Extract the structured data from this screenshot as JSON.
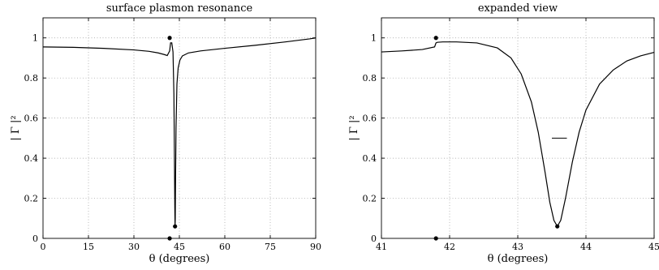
{
  "chart_data": [
    {
      "type": "line",
      "title": "surface plasmon resonance",
      "xlabel": "θ  (degrees)",
      "ylabel": "| Γ |²",
      "xlim": [
        0,
        90
      ],
      "ylim": [
        0,
        1.1
      ],
      "xticks": [
        0,
        15,
        30,
        45,
        60,
        75,
        90
      ],
      "yticks": [
        0,
        0.2,
        0.4,
        0.6,
        0.8,
        1
      ],
      "grid": true,
      "series": [
        {
          "x": [
            0,
            10,
            20,
            30,
            35,
            38,
            40,
            41,
            41.8,
            42.1,
            42.5,
            42.9,
            43.2,
            43.4,
            43.5,
            43.58,
            43.65,
            43.75,
            43.9,
            44.2,
            44.6,
            45.2,
            46,
            48,
            52,
            60,
            70,
            80,
            88,
            90
          ],
          "y": [
            0.955,
            0.953,
            0.948,
            0.94,
            0.933,
            0.925,
            0.917,
            0.912,
            0.935,
            0.975,
            0.975,
            0.93,
            0.72,
            0.35,
            0.15,
            0.06,
            0.1,
            0.3,
            0.55,
            0.77,
            0.85,
            0.89,
            0.91,
            0.925,
            0.935,
            0.948,
            0.963,
            0.98,
            0.995,
            1.0
          ]
        }
      ],
      "markers": [
        {
          "x": 41.8,
          "y": 1.0
        },
        {
          "x": 43.58,
          "y": 0.06
        },
        {
          "x": 41.8,
          "y": 0
        }
      ]
    },
    {
      "type": "line",
      "title": "expanded view",
      "xlabel": "θ  (degrees)",
      "ylabel": "| Γ |²",
      "xlim": [
        41,
        45
      ],
      "ylim": [
        0,
        1.1
      ],
      "xticks": [
        41,
        42,
        43,
        44,
        45
      ],
      "yticks": [
        0,
        0.2,
        0.4,
        0.6,
        0.8,
        1
      ],
      "grid": true,
      "series": [
        {
          "x": [
            41,
            41.3,
            41.6,
            41.78,
            41.8,
            41.82,
            41.9,
            42.1,
            42.4,
            42.7,
            42.9,
            43.05,
            43.2,
            43.3,
            43.4,
            43.47,
            43.53,
            43.58,
            43.63,
            43.7,
            43.8,
            43.9,
            44.0,
            44.2,
            44.4,
            44.6,
            44.8,
            45
          ],
          "y": [
            0.93,
            0.935,
            0.942,
            0.955,
            0.975,
            0.978,
            0.98,
            0.98,
            0.975,
            0.95,
            0.9,
            0.82,
            0.68,
            0.53,
            0.33,
            0.18,
            0.09,
            0.06,
            0.09,
            0.2,
            0.38,
            0.53,
            0.64,
            0.77,
            0.84,
            0.885,
            0.91,
            0.928
          ]
        }
      ],
      "markers": [
        {
          "x": 41.8,
          "y": 1.0
        },
        {
          "x": 43.58,
          "y": 0.06
        },
        {
          "x": 41.8,
          "y": 0
        }
      ],
      "hline": {
        "y": 0.5,
        "x": [
          43.5,
          43.72
        ]
      }
    }
  ]
}
